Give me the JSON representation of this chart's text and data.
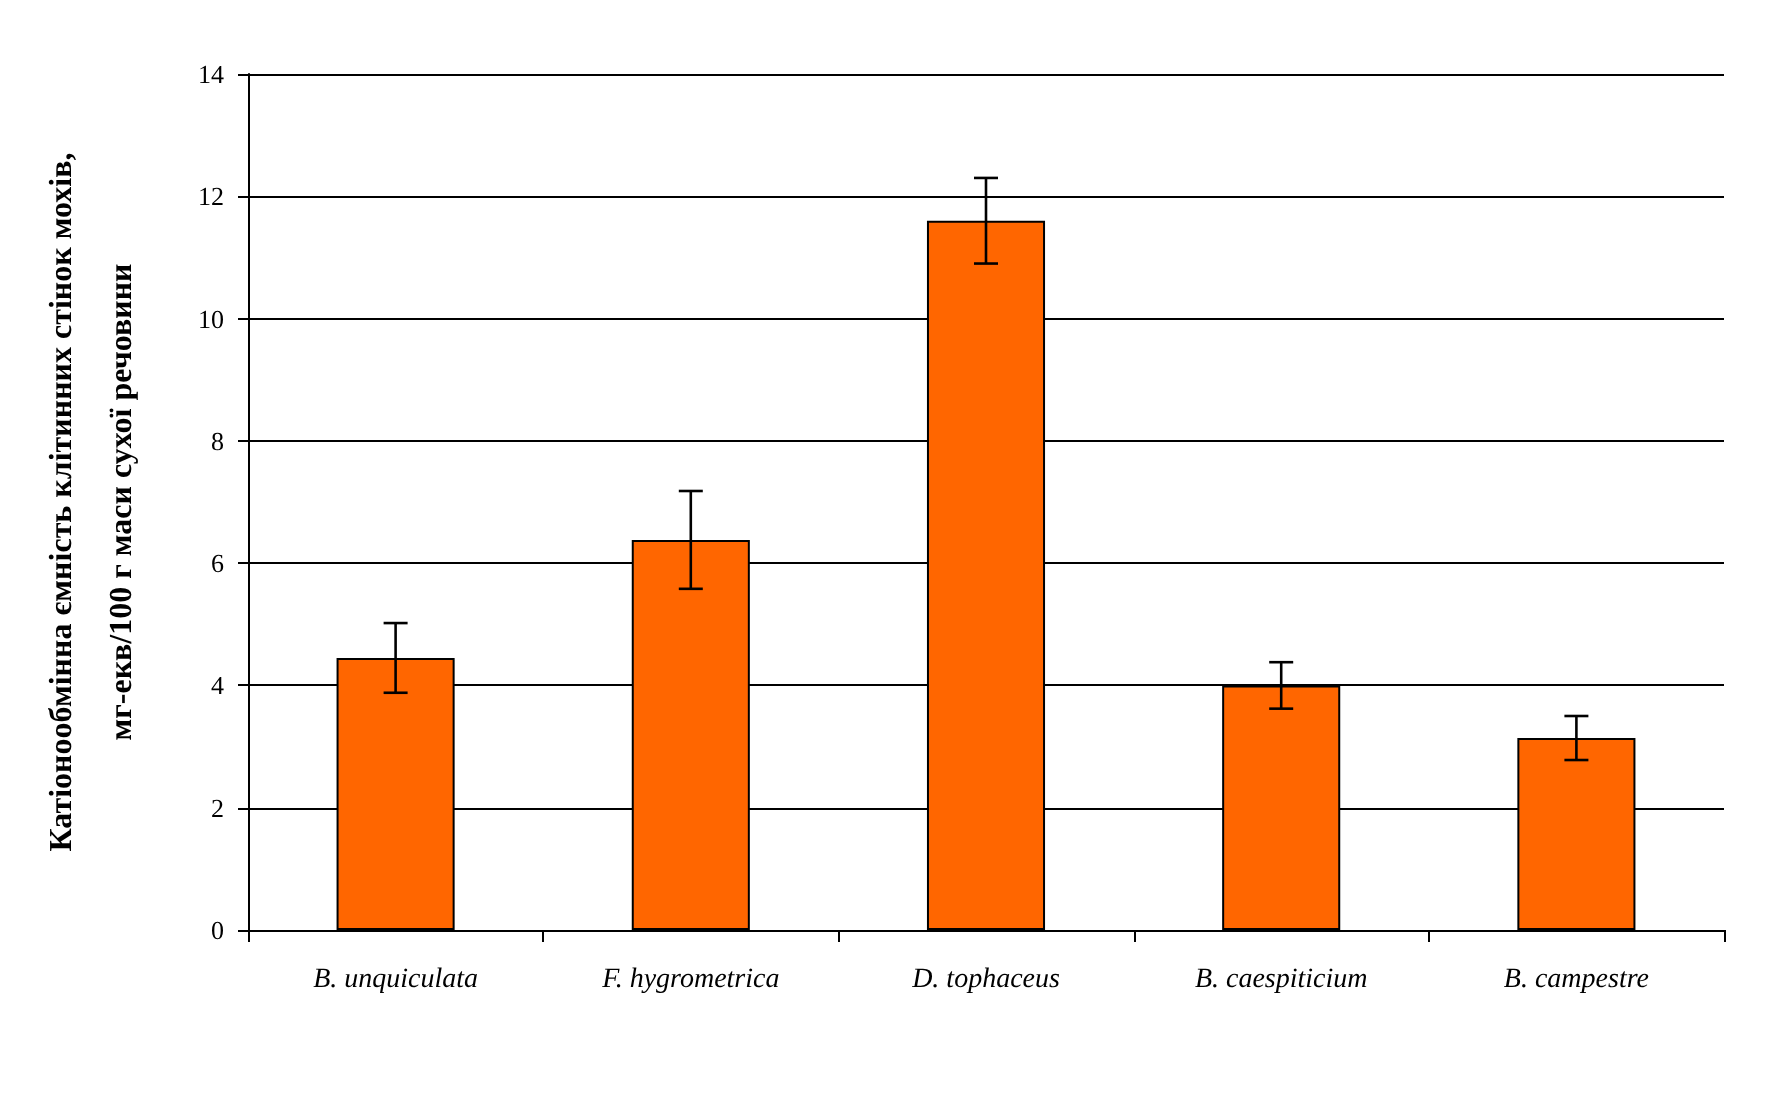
{
  "chart_data": {
    "type": "bar",
    "ylabel": "Катіонообмінна ємність клітинних стінок мохів,\nмг-екв/100 г маси сухої речовини",
    "categories": [
      "B. unquiculata",
      "F. hygrometrica",
      "D. tophaceus",
      "B. caespiticium",
      "B. campestre"
    ],
    "values": [
      4.45,
      6.38,
      11.6,
      4.0,
      3.14
    ],
    "errors": [
      0.57,
      0.8,
      0.7,
      0.38,
      0.36
    ],
    "color": "#ff6600",
    "ylim": [
      0,
      14
    ],
    "yticks": [
      0,
      2,
      4,
      6,
      8,
      10,
      12,
      14
    ],
    "grid": "y"
  }
}
